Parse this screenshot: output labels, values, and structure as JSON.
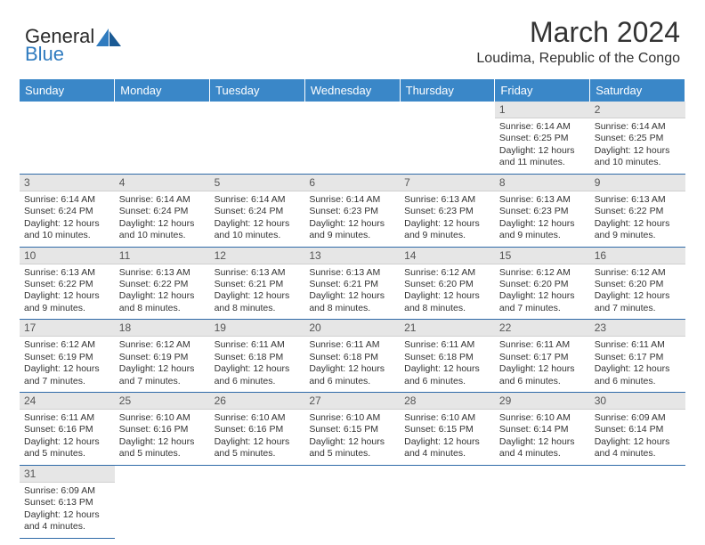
{
  "brand": {
    "name1": "General",
    "name2": "Blue"
  },
  "title": "March 2024",
  "location": "Loudima, Republic of the Congo",
  "colors": {
    "header_bg": "#3a87c8",
    "header_text": "#ffffff",
    "daynum_bg": "#e6e6e6",
    "row_border": "#2f6aa8",
    "brand_blue": "#2f7bbf",
    "text": "#333333",
    "background": "#ffffff"
  },
  "typography": {
    "title_fontsize": 32,
    "location_fontsize": 16,
    "dayheader_fontsize": 13,
    "daynum_fontsize": 12,
    "body_fontsize": 10.5
  },
  "layout": {
    "columns": 7,
    "rows": 6,
    "first_day_column": 5
  },
  "day_headers": [
    "Sunday",
    "Monday",
    "Tuesday",
    "Wednesday",
    "Thursday",
    "Friday",
    "Saturday"
  ],
  "days": [
    {
      "n": 1,
      "sunrise": "6:14 AM",
      "sunset": "6:25 PM",
      "daylight": "12 hours and 11 minutes."
    },
    {
      "n": 2,
      "sunrise": "6:14 AM",
      "sunset": "6:25 PM",
      "daylight": "12 hours and 10 minutes."
    },
    {
      "n": 3,
      "sunrise": "6:14 AM",
      "sunset": "6:24 PM",
      "daylight": "12 hours and 10 minutes."
    },
    {
      "n": 4,
      "sunrise": "6:14 AM",
      "sunset": "6:24 PM",
      "daylight": "12 hours and 10 minutes."
    },
    {
      "n": 5,
      "sunrise": "6:14 AM",
      "sunset": "6:24 PM",
      "daylight": "12 hours and 10 minutes."
    },
    {
      "n": 6,
      "sunrise": "6:14 AM",
      "sunset": "6:23 PM",
      "daylight": "12 hours and 9 minutes."
    },
    {
      "n": 7,
      "sunrise": "6:13 AM",
      "sunset": "6:23 PM",
      "daylight": "12 hours and 9 minutes."
    },
    {
      "n": 8,
      "sunrise": "6:13 AM",
      "sunset": "6:23 PM",
      "daylight": "12 hours and 9 minutes."
    },
    {
      "n": 9,
      "sunrise": "6:13 AM",
      "sunset": "6:22 PM",
      "daylight": "12 hours and 9 minutes."
    },
    {
      "n": 10,
      "sunrise": "6:13 AM",
      "sunset": "6:22 PM",
      "daylight": "12 hours and 9 minutes."
    },
    {
      "n": 11,
      "sunrise": "6:13 AM",
      "sunset": "6:22 PM",
      "daylight": "12 hours and 8 minutes."
    },
    {
      "n": 12,
      "sunrise": "6:13 AM",
      "sunset": "6:21 PM",
      "daylight": "12 hours and 8 minutes."
    },
    {
      "n": 13,
      "sunrise": "6:13 AM",
      "sunset": "6:21 PM",
      "daylight": "12 hours and 8 minutes."
    },
    {
      "n": 14,
      "sunrise": "6:12 AM",
      "sunset": "6:20 PM",
      "daylight": "12 hours and 8 minutes."
    },
    {
      "n": 15,
      "sunrise": "6:12 AM",
      "sunset": "6:20 PM",
      "daylight": "12 hours and 7 minutes."
    },
    {
      "n": 16,
      "sunrise": "6:12 AM",
      "sunset": "6:20 PM",
      "daylight": "12 hours and 7 minutes."
    },
    {
      "n": 17,
      "sunrise": "6:12 AM",
      "sunset": "6:19 PM",
      "daylight": "12 hours and 7 minutes."
    },
    {
      "n": 18,
      "sunrise": "6:12 AM",
      "sunset": "6:19 PM",
      "daylight": "12 hours and 7 minutes."
    },
    {
      "n": 19,
      "sunrise": "6:11 AM",
      "sunset": "6:18 PM",
      "daylight": "12 hours and 6 minutes."
    },
    {
      "n": 20,
      "sunrise": "6:11 AM",
      "sunset": "6:18 PM",
      "daylight": "12 hours and 6 minutes."
    },
    {
      "n": 21,
      "sunrise": "6:11 AM",
      "sunset": "6:18 PM",
      "daylight": "12 hours and 6 minutes."
    },
    {
      "n": 22,
      "sunrise": "6:11 AM",
      "sunset": "6:17 PM",
      "daylight": "12 hours and 6 minutes."
    },
    {
      "n": 23,
      "sunrise": "6:11 AM",
      "sunset": "6:17 PM",
      "daylight": "12 hours and 6 minutes."
    },
    {
      "n": 24,
      "sunrise": "6:11 AM",
      "sunset": "6:16 PM",
      "daylight": "12 hours and 5 minutes."
    },
    {
      "n": 25,
      "sunrise": "6:10 AM",
      "sunset": "6:16 PM",
      "daylight": "12 hours and 5 minutes."
    },
    {
      "n": 26,
      "sunrise": "6:10 AM",
      "sunset": "6:16 PM",
      "daylight": "12 hours and 5 minutes."
    },
    {
      "n": 27,
      "sunrise": "6:10 AM",
      "sunset": "6:15 PM",
      "daylight": "12 hours and 5 minutes."
    },
    {
      "n": 28,
      "sunrise": "6:10 AM",
      "sunset": "6:15 PM",
      "daylight": "12 hours and 4 minutes."
    },
    {
      "n": 29,
      "sunrise": "6:10 AM",
      "sunset": "6:14 PM",
      "daylight": "12 hours and 4 minutes."
    },
    {
      "n": 30,
      "sunrise": "6:09 AM",
      "sunset": "6:14 PM",
      "daylight": "12 hours and 4 minutes."
    },
    {
      "n": 31,
      "sunrise": "6:09 AM",
      "sunset": "6:13 PM",
      "daylight": "12 hours and 4 minutes."
    }
  ],
  "labels": {
    "sunrise": "Sunrise:",
    "sunset": "Sunset:",
    "daylight": "Daylight:"
  }
}
